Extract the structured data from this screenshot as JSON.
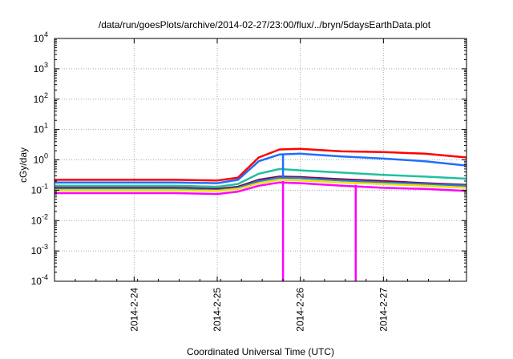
{
  "chart_data": {
    "type": "line",
    "title": "/data/run/goesPlots/archive/2014-02-27/23:00/flux/../bryn/5daysEarthData.plot",
    "xlabel": "Coordinated Universal Time (UTC)",
    "ylabel": "cGy/day",
    "yscale": "log",
    "ylim": [
      0.0001,
      10000
    ],
    "yticks": [
      {
        "value": 0.0001,
        "base": "10",
        "exp": "-4"
      },
      {
        "value": 0.001,
        "base": "10",
        "exp": "-3"
      },
      {
        "value": 0.01,
        "base": "10",
        "exp": "-2"
      },
      {
        "value": 0.1,
        "base": "10",
        "exp": "-1"
      },
      {
        "value": 1,
        "base": "10",
        "exp": "0"
      },
      {
        "value": 10,
        "base": "10",
        "exp": "1"
      },
      {
        "value": 100,
        "base": "10",
        "exp": "2"
      },
      {
        "value": 1000,
        "base": "10",
        "exp": "3"
      },
      {
        "value": 10000,
        "base": "10",
        "exp": "4"
      }
    ],
    "xlim": [
      "2014-02-23T01:00",
      "2014-02-28T00:00"
    ],
    "xticks": [
      {
        "value": "2014-02-24T00:00",
        "label": "2014-2-24"
      },
      {
        "value": "2014-02-25T00:00",
        "label": "2014-2-25"
      },
      {
        "value": "2014-02-26T00:00",
        "label": "2014-2-26"
      },
      {
        "value": "2014-02-27T00:00",
        "label": "2014-2-27"
      }
    ],
    "grid": true,
    "x": [
      "2014-02-23T01:00",
      "2014-02-23T12:00",
      "2014-02-24T00:00",
      "2014-02-24T12:00",
      "2014-02-25T00:00",
      "2014-02-25T06:00",
      "2014-02-25T12:00",
      "2014-02-25T18:00",
      "2014-02-26T00:00",
      "2014-02-26T12:00",
      "2014-02-27T00:00",
      "2014-02-27T12:00",
      "2014-02-28T00:00"
    ],
    "series": [
      {
        "color": "#ff0000",
        "values": [
          0.22,
          0.22,
          0.22,
          0.22,
          0.21,
          0.26,
          1.2,
          2.2,
          2.3,
          1.9,
          1.8,
          1.6,
          1.2
        ]
      },
      {
        "color": "#1e6fff",
        "values": [
          0.18,
          0.18,
          0.18,
          0.18,
          0.17,
          0.22,
          0.9,
          1.5,
          1.6,
          1.3,
          1.1,
          0.9,
          0.65
        ]
      },
      {
        "color": "#20c0a0",
        "values": [
          0.14,
          0.14,
          0.14,
          0.14,
          0.13,
          0.16,
          0.35,
          0.5,
          0.45,
          0.38,
          0.32,
          0.28,
          0.24
        ]
      },
      {
        "color": "#800040",
        "values": [
          0.12,
          0.12,
          0.12,
          0.12,
          0.11,
          0.13,
          0.22,
          0.28,
          0.27,
          0.23,
          0.2,
          0.17,
          0.15
        ]
      },
      {
        "color": "#2d7bd0",
        "values": [
          0.11,
          0.11,
          0.11,
          0.11,
          0.1,
          0.12,
          0.2,
          0.26,
          0.25,
          0.21,
          0.18,
          0.16,
          0.14
        ]
      },
      {
        "color": "#f0e000",
        "values": [
          0.1,
          0.1,
          0.1,
          0.1,
          0.095,
          0.11,
          0.17,
          0.22,
          0.21,
          0.18,
          0.16,
          0.14,
          0.12
        ]
      },
      {
        "color": "#ff00ff",
        "values": [
          0.08,
          0.08,
          0.08,
          0.08,
          0.075,
          0.09,
          0.14,
          0.18,
          0.17,
          0.14,
          0.12,
          0.11,
          0.095
        ]
      }
    ],
    "annotations": [
      {
        "color": "#ff00ff",
        "x": "2014-02-25T19:00",
        "from": 0.2,
        "to": 0.0001
      },
      {
        "color": "#ff00ff",
        "x": "2014-02-26T16:00",
        "from": 0.15,
        "to": 0.0001
      },
      {
        "color": "#1e6fff",
        "x": "2014-02-25T19:00",
        "from": 1.5,
        "to": 0.25
      }
    ]
  }
}
